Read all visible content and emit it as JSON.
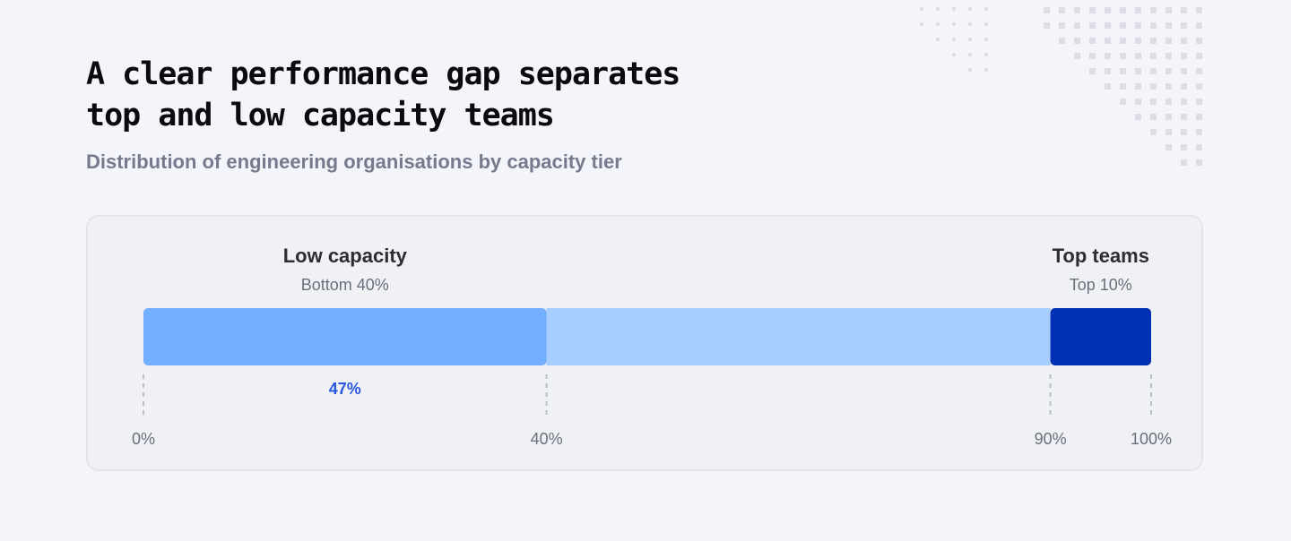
{
  "header": {
    "title_line1": "A clear performance gap separates",
    "title_line2": "top and low capacity teams",
    "subtitle": "Distribution of engineering organisations by capacity tier"
  },
  "chart_data": {
    "type": "bar",
    "orientation": "horizontal-stacked",
    "axis_range": [
      0,
      100
    ],
    "ticks": [
      {
        "value": 0,
        "label": "0%"
      },
      {
        "value": 40,
        "label": "40%"
      },
      {
        "value": 90,
        "label": "90%"
      },
      {
        "value": 100,
        "label": "100%"
      }
    ],
    "segments": [
      {
        "start": 0,
        "end": 40,
        "color": "#74aeff"
      },
      {
        "start": 40,
        "end": 90,
        "color": "#a8cdff"
      },
      {
        "start": 90,
        "end": 100,
        "color": "#0030b3"
      }
    ],
    "annotations": [
      {
        "name": "Low capacity",
        "sub": "Bottom 40%",
        "center": 20
      },
      {
        "name": "Top teams",
        "sub": "Top 10%",
        "center": 95
      }
    ],
    "value_label": {
      "text": "47%",
      "center": 20,
      "color": "#2657e0"
    }
  }
}
